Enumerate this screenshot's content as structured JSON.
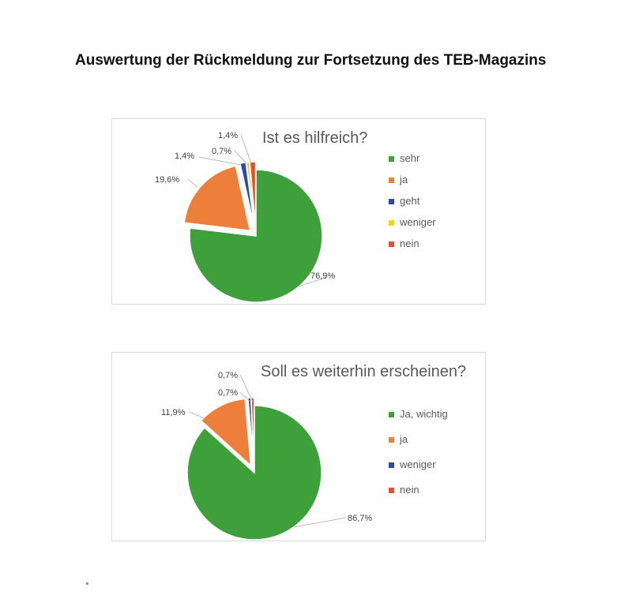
{
  "page_title": "Auswertung der Rückmeldung zur Fortsetzung des TEB-Magazins",
  "chart_data": [
    {
      "type": "pie",
      "title": "Ist es hilfreich?",
      "categories": [
        "sehr",
        "ja",
        "geht",
        "weniger",
        "nein"
      ],
      "values": [
        76.9,
        19.6,
        1.4,
        0.7,
        1.4
      ],
      "data_labels": [
        "76,9%",
        "19,6%",
        "1,4%",
        "0,7%",
        "1,4%"
      ],
      "colors": [
        "#3ea03b",
        "#ee7f3b",
        "#2e4aa6",
        "#f5d313",
        "#e3502d"
      ],
      "legend_position": "right"
    },
    {
      "type": "pie",
      "title": "Soll es weiterhin erscheinen?",
      "categories": [
        "Ja, wichtig",
        "ja",
        "weniger",
        "nein"
      ],
      "values": [
        86.7,
        11.9,
        0.7,
        0.7
      ],
      "data_labels": [
        "86,7%",
        "11,9%",
        "0,7%",
        "0,7%"
      ],
      "colors": [
        "#3ea03b",
        "#ee7f3b",
        "#2e4aa6",
        "#e3502d"
      ],
      "legend_position": "right"
    }
  ]
}
